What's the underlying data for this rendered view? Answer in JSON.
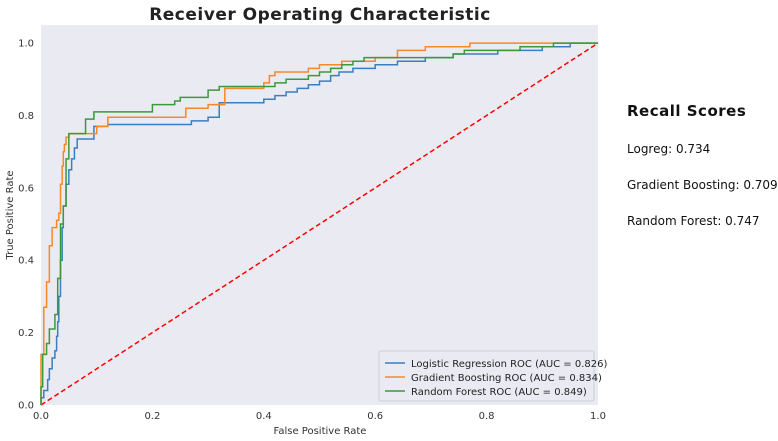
{
  "chart_data": {
    "type": "line",
    "title": "Receiver Operating Characteristic",
    "xlabel": "False Positive Rate",
    "ylabel": "True Positive Rate",
    "xlim": [
      0,
      1
    ],
    "ylim": [
      0,
      1.05
    ],
    "xticks": [
      0.0,
      0.2,
      0.4,
      0.6,
      0.8,
      1.0
    ],
    "yticks": [
      0.0,
      0.2,
      0.4,
      0.6,
      0.8,
      1.0
    ],
    "xtick_labels": [
      "0.0",
      "0.2",
      "0.4",
      "0.6",
      "0.8",
      "1.0"
    ],
    "ytick_labels": [
      "0.0",
      "0.2",
      "0.4",
      "0.6",
      "0.8",
      "1.0"
    ],
    "grid": false,
    "legend_position": "lower-right",
    "background": "#eaeaf2",
    "series": [
      {
        "name": "Logistic Regression ROC (AUC = 0.826)",
        "color": "#3a7fc1",
        "points": [
          [
            0,
            0
          ],
          [
            0,
            0.02
          ],
          [
            0.005,
            0.02
          ],
          [
            0.005,
            0.04
          ],
          [
            0.012,
            0.04
          ],
          [
            0.012,
            0.07
          ],
          [
            0.015,
            0.07
          ],
          [
            0.015,
            0.1
          ],
          [
            0.02,
            0.1
          ],
          [
            0.02,
            0.13
          ],
          [
            0.025,
            0.13
          ],
          [
            0.025,
            0.15
          ],
          [
            0.028,
            0.15
          ],
          [
            0.028,
            0.19
          ],
          [
            0.03,
            0.19
          ],
          [
            0.03,
            0.23
          ],
          [
            0.032,
            0.23
          ],
          [
            0.032,
            0.3
          ],
          [
            0.035,
            0.3
          ],
          [
            0.035,
            0.4
          ],
          [
            0.038,
            0.4
          ],
          [
            0.038,
            0.49
          ],
          [
            0.04,
            0.49
          ],
          [
            0.04,
            0.55
          ],
          [
            0.045,
            0.55
          ],
          [
            0.045,
            0.61
          ],
          [
            0.05,
            0.61
          ],
          [
            0.05,
            0.65
          ],
          [
            0.055,
            0.65
          ],
          [
            0.055,
            0.68
          ],
          [
            0.06,
            0.68
          ],
          [
            0.06,
            0.71
          ],
          [
            0.065,
            0.71
          ],
          [
            0.065,
            0.735
          ],
          [
            0.095,
            0.735
          ],
          [
            0.095,
            0.77
          ],
          [
            0.12,
            0.77
          ],
          [
            0.12,
            0.775
          ],
          [
            0.27,
            0.775
          ],
          [
            0.27,
            0.785
          ],
          [
            0.3,
            0.785
          ],
          [
            0.3,
            0.795
          ],
          [
            0.32,
            0.795
          ],
          [
            0.32,
            0.835
          ],
          [
            0.4,
            0.835
          ],
          [
            0.4,
            0.845
          ],
          [
            0.42,
            0.845
          ],
          [
            0.42,
            0.855
          ],
          [
            0.44,
            0.855
          ],
          [
            0.44,
            0.865
          ],
          [
            0.46,
            0.865
          ],
          [
            0.46,
            0.875
          ],
          [
            0.48,
            0.875
          ],
          [
            0.48,
            0.885
          ],
          [
            0.5,
            0.885
          ],
          [
            0.5,
            0.895
          ],
          [
            0.52,
            0.895
          ],
          [
            0.52,
            0.91
          ],
          [
            0.535,
            0.91
          ],
          [
            0.535,
            0.92
          ],
          [
            0.56,
            0.92
          ],
          [
            0.56,
            0.93
          ],
          [
            0.6,
            0.93
          ],
          [
            0.6,
            0.94
          ],
          [
            0.64,
            0.94
          ],
          [
            0.64,
            0.95
          ],
          [
            0.69,
            0.95
          ],
          [
            0.69,
            0.96
          ],
          [
            0.74,
            0.96
          ],
          [
            0.74,
            0.97
          ],
          [
            0.82,
            0.97
          ],
          [
            0.82,
            0.98
          ],
          [
            0.9,
            0.98
          ],
          [
            0.9,
            0.99
          ],
          [
            0.95,
            0.99
          ],
          [
            0.95,
            1.0
          ],
          [
            1.0,
            1.0
          ]
        ]
      },
      {
        "name": "Gradient Boosting ROC (AUC = 0.834)",
        "color": "#f5892a",
        "points": [
          [
            0,
            0
          ],
          [
            0,
            0.14
          ],
          [
            0.005,
            0.14
          ],
          [
            0.005,
            0.27
          ],
          [
            0.01,
            0.27
          ],
          [
            0.01,
            0.34
          ],
          [
            0.015,
            0.34
          ],
          [
            0.015,
            0.44
          ],
          [
            0.02,
            0.44
          ],
          [
            0.02,
            0.49
          ],
          [
            0.028,
            0.49
          ],
          [
            0.028,
            0.51
          ],
          [
            0.032,
            0.51
          ],
          [
            0.032,
            0.53
          ],
          [
            0.035,
            0.53
          ],
          [
            0.035,
            0.61
          ],
          [
            0.038,
            0.61
          ],
          [
            0.038,
            0.66
          ],
          [
            0.04,
            0.66
          ],
          [
            0.04,
            0.7
          ],
          [
            0.042,
            0.7
          ],
          [
            0.042,
            0.72
          ],
          [
            0.045,
            0.72
          ],
          [
            0.045,
            0.74
          ],
          [
            0.05,
            0.74
          ],
          [
            0.05,
            0.75
          ],
          [
            0.1,
            0.75
          ],
          [
            0.1,
            0.77
          ],
          [
            0.12,
            0.77
          ],
          [
            0.12,
            0.795
          ],
          [
            0.26,
            0.795
          ],
          [
            0.26,
            0.82
          ],
          [
            0.3,
            0.82
          ],
          [
            0.3,
            0.83
          ],
          [
            0.33,
            0.83
          ],
          [
            0.33,
            0.875
          ],
          [
            0.4,
            0.875
          ],
          [
            0.4,
            0.89
          ],
          [
            0.41,
            0.89
          ],
          [
            0.41,
            0.91
          ],
          [
            0.42,
            0.91
          ],
          [
            0.42,
            0.92
          ],
          [
            0.48,
            0.92
          ],
          [
            0.48,
            0.93
          ],
          [
            0.5,
            0.93
          ],
          [
            0.5,
            0.94
          ],
          [
            0.54,
            0.94
          ],
          [
            0.54,
            0.95
          ],
          [
            0.6,
            0.95
          ],
          [
            0.6,
            0.96
          ],
          [
            0.64,
            0.96
          ],
          [
            0.64,
            0.98
          ],
          [
            0.69,
            0.98
          ],
          [
            0.69,
            0.99
          ],
          [
            0.77,
            0.99
          ],
          [
            0.77,
            1.0
          ],
          [
            1.0,
            1.0
          ]
        ]
      },
      {
        "name": "Random Forest ROC (AUC = 0.849)",
        "color": "#3a9a3a",
        "points": [
          [
            0,
            0
          ],
          [
            0,
            0.05
          ],
          [
            0.003,
            0.05
          ],
          [
            0.003,
            0.14
          ],
          [
            0.01,
            0.14
          ],
          [
            0.01,
            0.17
          ],
          [
            0.015,
            0.17
          ],
          [
            0.015,
            0.21
          ],
          [
            0.025,
            0.21
          ],
          [
            0.025,
            0.25
          ],
          [
            0.03,
            0.25
          ],
          [
            0.03,
            0.35
          ],
          [
            0.035,
            0.35
          ],
          [
            0.035,
            0.5
          ],
          [
            0.04,
            0.5
          ],
          [
            0.04,
            0.55
          ],
          [
            0.045,
            0.55
          ],
          [
            0.045,
            0.68
          ],
          [
            0.05,
            0.68
          ],
          [
            0.05,
            0.75
          ],
          [
            0.08,
            0.75
          ],
          [
            0.08,
            0.79
          ],
          [
            0.095,
            0.79
          ],
          [
            0.095,
            0.81
          ],
          [
            0.2,
            0.81
          ],
          [
            0.2,
            0.83
          ],
          [
            0.24,
            0.83
          ],
          [
            0.24,
            0.84
          ],
          [
            0.25,
            0.84
          ],
          [
            0.25,
            0.85
          ],
          [
            0.3,
            0.85
          ],
          [
            0.3,
            0.87
          ],
          [
            0.32,
            0.87
          ],
          [
            0.32,
            0.88
          ],
          [
            0.42,
            0.88
          ],
          [
            0.42,
            0.89
          ],
          [
            0.44,
            0.89
          ],
          [
            0.44,
            0.9
          ],
          [
            0.48,
            0.9
          ],
          [
            0.48,
            0.91
          ],
          [
            0.5,
            0.91
          ],
          [
            0.5,
            0.92
          ],
          [
            0.52,
            0.92
          ],
          [
            0.52,
            0.93
          ],
          [
            0.54,
            0.93
          ],
          [
            0.54,
            0.94
          ],
          [
            0.56,
            0.94
          ],
          [
            0.56,
            0.95
          ],
          [
            0.58,
            0.95
          ],
          [
            0.58,
            0.96
          ],
          [
            0.74,
            0.96
          ],
          [
            0.74,
            0.97
          ],
          [
            0.76,
            0.97
          ],
          [
            0.76,
            0.98
          ],
          [
            0.86,
            0.98
          ],
          [
            0.86,
            0.99
          ],
          [
            0.92,
            0.99
          ],
          [
            0.92,
            1.0
          ],
          [
            1.0,
            1.0
          ]
        ]
      },
      {
        "name": "",
        "color": "#ff0000",
        "dashed": true,
        "points": [
          [
            0,
            0
          ],
          [
            1,
            1
          ]
        ]
      }
    ]
  },
  "side_panel": {
    "title": "Recall Scores",
    "items": [
      "Logreg: 0.734",
      "Gradient Boosting: 0.709",
      "Random Forest: 0.747"
    ]
  }
}
